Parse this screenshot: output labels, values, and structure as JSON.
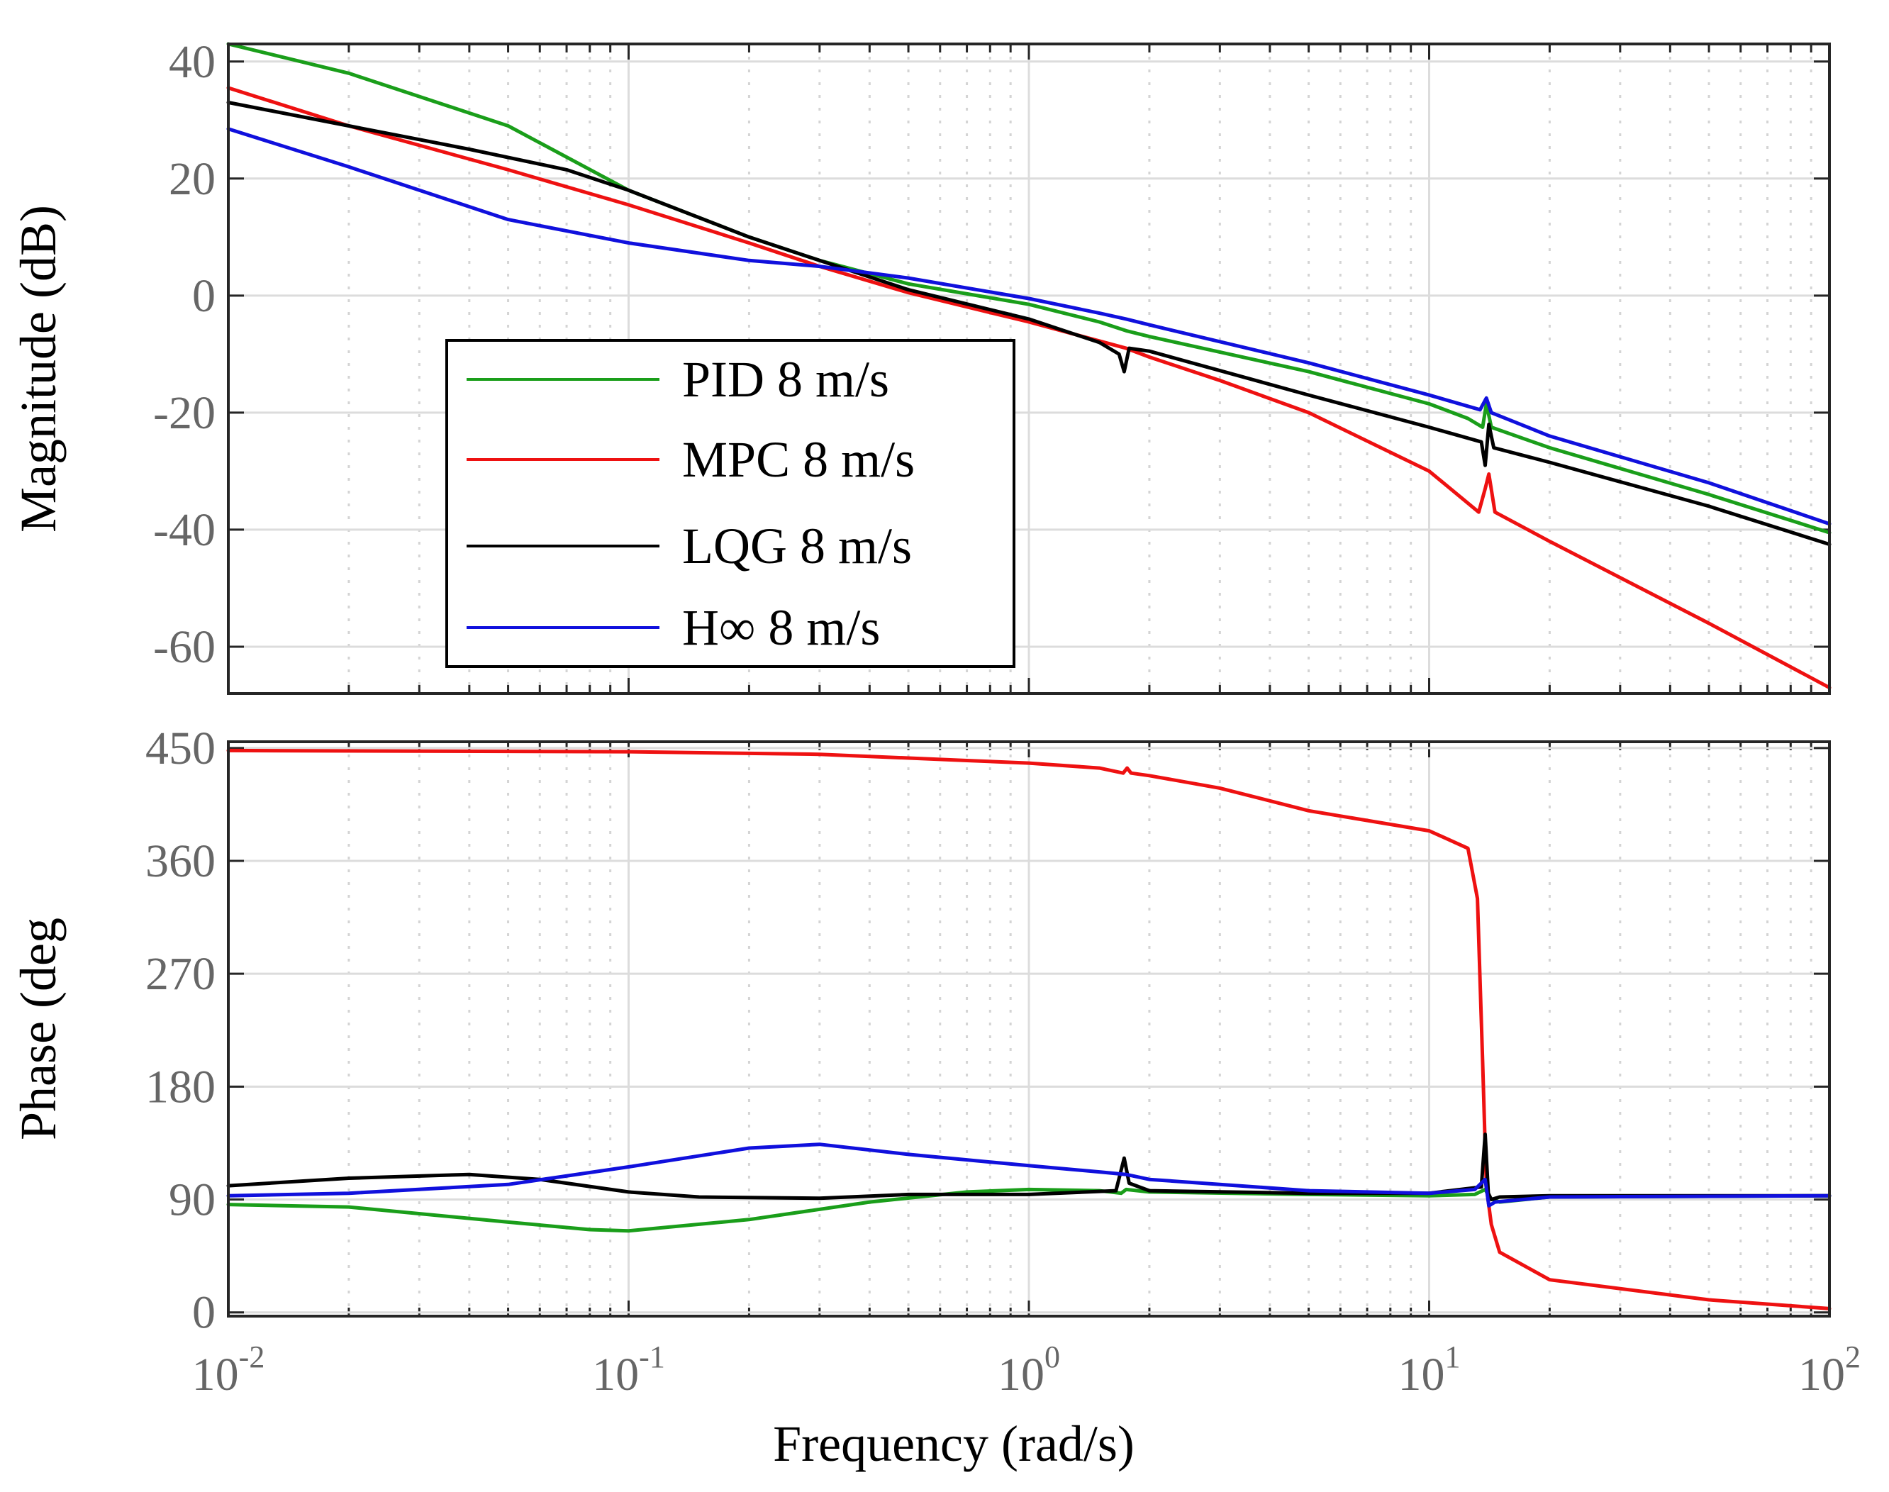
{
  "chart_data": {
    "type": "line",
    "xscale": "log",
    "xlim": [
      0.01,
      100
    ],
    "x_tick_labels": [
      {
        "base": "10",
        "exp": "-2"
      },
      {
        "base": "10",
        "exp": "-1"
      },
      {
        "base": "10",
        "exp": "0"
      },
      {
        "base": "10",
        "exp": "1"
      },
      {
        "base": "10",
        "exp": "2"
      }
    ],
    "xlabel": "Frequency  (rad/s)",
    "grid": true,
    "legend": {
      "placement": "inside-top-panel-lower-left"
    },
    "series_meta": [
      {
        "name": "PID 8 m/s",
        "color": "#1a9e1a"
      },
      {
        "name": "MPC 8 m/s",
        "color": "#ee1111"
      },
      {
        "name": "LQG 8 m/s",
        "color": "#000000"
      },
      {
        "name": "H∞  8 m/s",
        "color": "#1010dd"
      }
    ],
    "panels": [
      {
        "id": "magnitude",
        "ylabel": "Magnitude (dB)",
        "ylim": [
          -68,
          43
        ],
        "yticks": [
          40,
          20,
          0,
          -20,
          -40,
          -60
        ],
        "ytick_labels": [
          "40",
          "20",
          "0",
          "-20",
          "-40",
          "-60"
        ],
        "series": [
          {
            "name": "PID 8 m/s",
            "points": [
              [
                0.01,
                43
              ],
              [
                0.02,
                38
              ],
              [
                0.05,
                29
              ],
              [
                0.1,
                18
              ],
              [
                0.2,
                10
              ],
              [
                0.3,
                6
              ],
              [
                0.5,
                2
              ],
              [
                1,
                -1.5
              ],
              [
                1.5,
                -4.5
              ],
              [
                1.75,
                -6
              ],
              [
                2,
                -7
              ],
              [
                5,
                -13
              ],
              [
                10,
                -18.5
              ],
              [
                12.5,
                -21
              ],
              [
                13.6,
                -22.5
              ],
              [
                13.9,
                -18.5
              ],
              [
                14.3,
                -22.5
              ],
              [
                20,
                -26
              ],
              [
                50,
                -34
              ],
              [
                100,
                -40.5
              ]
            ]
          },
          {
            "name": "MPC 8 m/s",
            "points": [
              [
                0.01,
                35.5
              ],
              [
                0.02,
                29
              ],
              [
                0.05,
                21.5
              ],
              [
                0.1,
                15.5
              ],
              [
                0.2,
                9
              ],
              [
                0.3,
                5
              ],
              [
                0.5,
                0.5
              ],
              [
                1,
                -4.5
              ],
              [
                1.75,
                -9
              ],
              [
                2,
                -10.5
              ],
              [
                3,
                -14.5
              ],
              [
                5,
                -20
              ],
              [
                10,
                -30
              ],
              [
                13.3,
                -37
              ],
              [
                13.8,
                -33
              ],
              [
                14.1,
                -30.5
              ],
              [
                14.6,
                -37
              ],
              [
                20,
                -42
              ],
              [
                50,
                -56
              ],
              [
                100,
                -67
              ]
            ]
          },
          {
            "name": "LQG 8 m/s",
            "points": [
              [
                0.01,
                33
              ],
              [
                0.02,
                29
              ],
              [
                0.04,
                25
              ],
              [
                0.07,
                21.5
              ],
              [
                0.1,
                18
              ],
              [
                0.2,
                10
              ],
              [
                0.3,
                6
              ],
              [
                0.5,
                1
              ],
              [
                1,
                -4
              ],
              [
                1.5,
                -8
              ],
              [
                1.68,
                -10
              ],
              [
                1.73,
                -13
              ],
              [
                1.78,
                -9
              ],
              [
                2,
                -9.5
              ],
              [
                5,
                -17
              ],
              [
                10,
                -22.5
              ],
              [
                13.5,
                -25
              ],
              [
                13.8,
                -29
              ],
              [
                14.1,
                -22
              ],
              [
                14.5,
                -26
              ],
              [
                20,
                -28.5
              ],
              [
                50,
                -36
              ],
              [
                100,
                -42.5
              ]
            ]
          },
          {
            "name": "H∞  8 m/s",
            "points": [
              [
                0.01,
                28.5
              ],
              [
                0.02,
                22
              ],
              [
                0.05,
                13
              ],
              [
                0.1,
                9
              ],
              [
                0.2,
                6
              ],
              [
                0.3,
                5
              ],
              [
                0.5,
                3
              ],
              [
                1,
                -0.5
              ],
              [
                1.5,
                -3
              ],
              [
                1.75,
                -4
              ],
              [
                2,
                -5
              ],
              [
                5,
                -11.5
              ],
              [
                10,
                -17
              ],
              [
                13.4,
                -19.5
              ],
              [
                13.9,
                -17.5
              ],
              [
                14.3,
                -20
              ],
              [
                20,
                -24
              ],
              [
                50,
                -32
              ],
              [
                100,
                -39
              ]
            ]
          }
        ]
      },
      {
        "id": "phase",
        "ylabel": "Phase (deg",
        "ylim": [
          -3,
          455
        ],
        "yticks": [
          450,
          360,
          270,
          180,
          90,
          0
        ],
        "ytick_labels": [
          "450",
          "360",
          "270",
          "180",
          "90",
          "0"
        ],
        "series": [
          {
            "name": "PID 8 m/s",
            "points": [
              [
                0.01,
                86
              ],
              [
                0.02,
                84
              ],
              [
                0.05,
                72
              ],
              [
                0.08,
                66
              ],
              [
                0.1,
                65
              ],
              [
                0.2,
                74
              ],
              [
                0.4,
                88
              ],
              [
                0.7,
                96
              ],
              [
                1,
                98
              ],
              [
                1.5,
                97
              ],
              [
                1.7,
                95
              ],
              [
                1.75,
                98
              ],
              [
                2,
                96
              ],
              [
                5,
                94
              ],
              [
                10,
                93
              ],
              [
                13,
                94
              ],
              [
                13.8,
                98
              ],
              [
                14.2,
                91
              ],
              [
                15,
                88
              ],
              [
                20,
                92
              ],
              [
                100,
                93
              ]
            ]
          },
          {
            "name": "MPC 8 m/s",
            "points": [
              [
                0.01,
                448
              ],
              [
                0.1,
                447
              ],
              [
                0.3,
                445
              ],
              [
                0.7,
                440
              ],
              [
                1,
                438
              ],
              [
                1.5,
                434
              ],
              [
                1.72,
                430
              ],
              [
                1.76,
                434
              ],
              [
                1.8,
                430
              ],
              [
                2,
                428
              ],
              [
                3,
                418
              ],
              [
                5,
                400
              ],
              [
                10,
                384
              ],
              [
                12.5,
                370
              ],
              [
                13.2,
                330
              ],
              [
                13.6,
                200
              ],
              [
                13.9,
                100
              ],
              [
                14.3,
                70
              ],
              [
                15,
                48
              ],
              [
                20,
                26
              ],
              [
                50,
                10
              ],
              [
                100,
                3
              ]
            ]
          },
          {
            "name": "LQG 8 m/s",
            "points": [
              [
                0.01,
                101
              ],
              [
                0.02,
                107
              ],
              [
                0.04,
                110
              ],
              [
                0.06,
                106
              ],
              [
                0.1,
                96
              ],
              [
                0.15,
                92
              ],
              [
                0.3,
                91
              ],
              [
                0.5,
                94
              ],
              [
                1,
                94
              ],
              [
                1.65,
                97
              ],
              [
                1.73,
                123
              ],
              [
                1.78,
                103
              ],
              [
                2,
                97
              ],
              [
                5,
                95
              ],
              [
                10,
                95
              ],
              [
                13.5,
                100
              ],
              [
                13.8,
                142
              ],
              [
                14.05,
                95
              ],
              [
                14.3,
                90
              ],
              [
                15,
                92
              ],
              [
                20,
                93
              ],
              [
                100,
                93
              ]
            ]
          },
          {
            "name": "H∞  8 m/s",
            "points": [
              [
                0.01,
                93
              ],
              [
                0.02,
                95
              ],
              [
                0.05,
                102
              ],
              [
                0.1,
                116
              ],
              [
                0.2,
                131
              ],
              [
                0.3,
                134
              ],
              [
                0.5,
                126
              ],
              [
                1,
                117
              ],
              [
                1.5,
                112
              ],
              [
                1.75,
                110
              ],
              [
                2,
                106
              ],
              [
                5,
                97
              ],
              [
                10,
                95
              ],
              [
                13,
                98
              ],
              [
                13.8,
                106
              ],
              [
                14.1,
                85
              ],
              [
                14.6,
                88
              ],
              [
                20,
                92
              ],
              [
                100,
                93
              ]
            ]
          }
        ]
      }
    ]
  }
}
